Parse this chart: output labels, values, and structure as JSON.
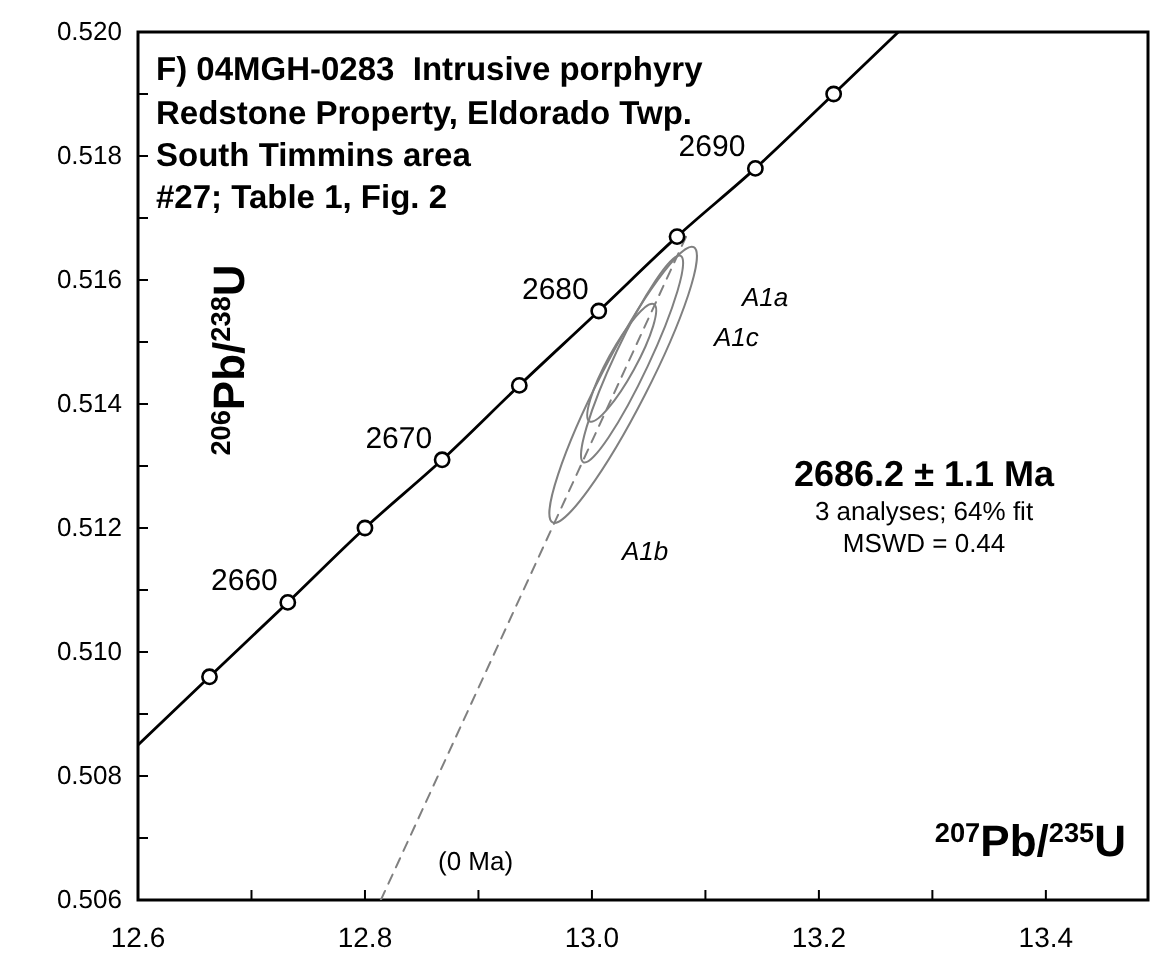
{
  "chart_data": {
    "type": "line",
    "title": "F) 04MGH-0283  Intrusive porphyry",
    "subtitle": "Redstone Property, Eldorado Twp.\nSouth Timmins area\n#27; Table 1, Fig. 2",
    "xlabel": "$^{207}$Pb/$^{235}$U",
    "ylabel": "$^{206}$Pb/$^{238}$U",
    "xlim": [
      12.6,
      13.49
    ],
    "ylim": [
      0.506,
      0.52
    ],
    "xticks": [
      12.6,
      {
        "value": 12.7,
        "label": null
      },
      12.8,
      {
        "value": 12.9,
        "label": null
      },
      {
        "value": 13,
        "label": "13.0"
      },
      {
        "value": 13.1,
        "label": null
      },
      13.2,
      {
        "value": 13.3,
        "label": null
      },
      13.4
    ],
    "yticks": [
      0.506,
      {
        "value": 0.507,
        "label": null
      },
      0.508,
      {
        "value": 0.509,
        "label": null
      },
      {
        "value": 0.51,
        "label": "0.510"
      },
      {
        "value": 0.511,
        "label": null
      },
      0.512,
      {
        "value": 0.513,
        "label": null
      },
      0.514,
      {
        "value": 0.515,
        "label": null
      },
      0.516,
      {
        "value": 0.517,
        "label": null
      },
      0.518,
      {
        "value": 0.519,
        "label": null
      },
      {
        "value": 0.52,
        "label": "0.520"
      }
    ],
    "series": [
      {
        "color": "#000000",
        "marker": "none",
        "line_style": "solid",
        "x": [
          12.6,
          12.663,
          12.732,
          12.8,
          12.868,
          12.936,
          13.006,
          13.075,
          13.144,
          13.213,
          13.27
        ],
        "values": [
          0.5085,
          0.5096,
          0.5108,
          0.512,
          0.5131,
          0.5143,
          0.5155,
          0.5167,
          0.5178,
          0.519,
          0.52
        ]
      },
      {
        "type": "scatter",
        "color": "#000000",
        "marker": "circle",
        "x": [
          12.663,
          12.732,
          12.8,
          12.868,
          12.936,
          13.006,
          13.075,
          13.144,
          13.213
        ],
        "values": [
          0.5096,
          0.5108,
          0.512,
          0.5131,
          0.5143,
          0.5155,
          0.5167,
          0.5178,
          0.519
        ]
      },
      {
        "color": "#808080",
        "marker": "none",
        "line_style": "dashed",
        "x": [
          12.814,
          13.083
        ],
        "values": [
          0.506,
          0.5167
        ]
      }
    ],
    "annotations": [
      {
        "text": "2660",
        "x": 12.732,
        "y": 0.5108
      },
      {
        "text": "2670",
        "x": 12.868,
        "y": 0.5131
      },
      {
        "text": "2680",
        "x": 13.006,
        "y": 0.5155
      },
      {
        "text": "2690",
        "x": 13.144,
        "y": 0.5178
      },
      "A1a",
      "A1c",
      "A1b",
      "(0 Ma)",
      "2686.2 ± 1.1 Ma",
      "3 analyses; 64% fit",
      "MSWD = 0.44"
    ]
  }
}
